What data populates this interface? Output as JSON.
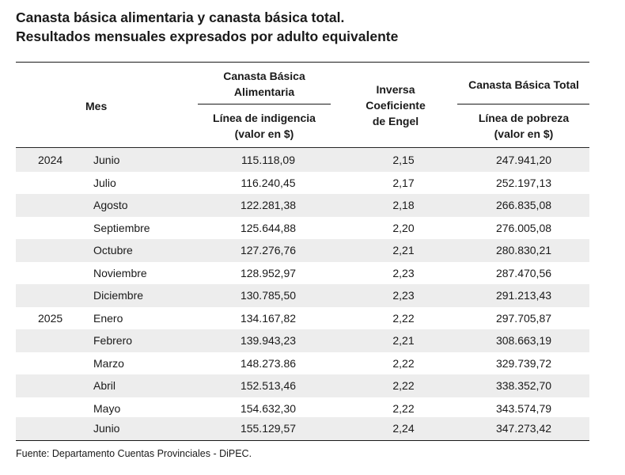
{
  "title": {
    "line1": "Canasta básica alimentaria y canasta básica total.",
    "line2": "Resultados mensuales expresados por adulto equivalente"
  },
  "header": {
    "mes": "Mes",
    "cba_line1": "Canasta Básica",
    "cba_line2": "Alimentaria",
    "cba_sub1": "Línea de indigencia",
    "cba_sub2": "(valor en $)",
    "engel_line1": "Inversa",
    "engel_line2": "Coeficiente",
    "engel_line3": "de Engel",
    "cbt_line1": "Canasta Básica Total",
    "cbt_sub1": "Línea de pobreza",
    "cbt_sub2": "(valor en $)"
  },
  "rows": [
    {
      "year": "2024",
      "month": "Junio",
      "cba": "115.118,09",
      "engel": "2,15",
      "cbt": "247.941,20"
    },
    {
      "year": "",
      "month": "Julio",
      "cba": "116.240,45",
      "engel": "2,17",
      "cbt": "252.197,13"
    },
    {
      "year": "",
      "month": "Agosto",
      "cba": "122.281,38",
      "engel": "2,18",
      "cbt": "266.835,08"
    },
    {
      "year": "",
      "month": "Septiembre",
      "cba": "125.644,88",
      "engel": "2,20",
      "cbt": "276.005,08"
    },
    {
      "year": "",
      "month": "Octubre",
      "cba": "127.276,76",
      "engel": "2,21",
      "cbt": "280.830,21"
    },
    {
      "year": "",
      "month": "Noviembre",
      "cba": "128.952,97",
      "engel": "2,23",
      "cbt": "287.470,56"
    },
    {
      "year": "",
      "month": "Diciembre",
      "cba": "130.785,50",
      "engel": "2,23",
      "cbt": "291.213,43"
    },
    {
      "year": "2025",
      "month": "Enero",
      "cba": "134.167,82",
      "engel": "2,22",
      "cbt": "297.705,87"
    },
    {
      "year": "",
      "month": "Febrero",
      "cba": "139.943,23",
      "engel": "2,21",
      "cbt": "308.663,19"
    },
    {
      "year": "",
      "month": "Marzo",
      "cba": "148.273.86",
      "engel": "2,22",
      "cbt": "329.739,72"
    },
    {
      "year": "",
      "month": "Abril",
      "cba": "152.513,46",
      "engel": "2,22",
      "cbt": "338.352,70"
    },
    {
      "year": "",
      "month": "Mayo",
      "cba": "154.632,30",
      "engel": "2,22",
      "cbt": "343.574,79"
    },
    {
      "year": "",
      "month": "Junio",
      "cba": "155.129,57",
      "engel": "2,24",
      "cbt": "347.273,42"
    }
  ],
  "footer": "Fuente: Departamento Cuentas Provinciales - DiPEC."
}
